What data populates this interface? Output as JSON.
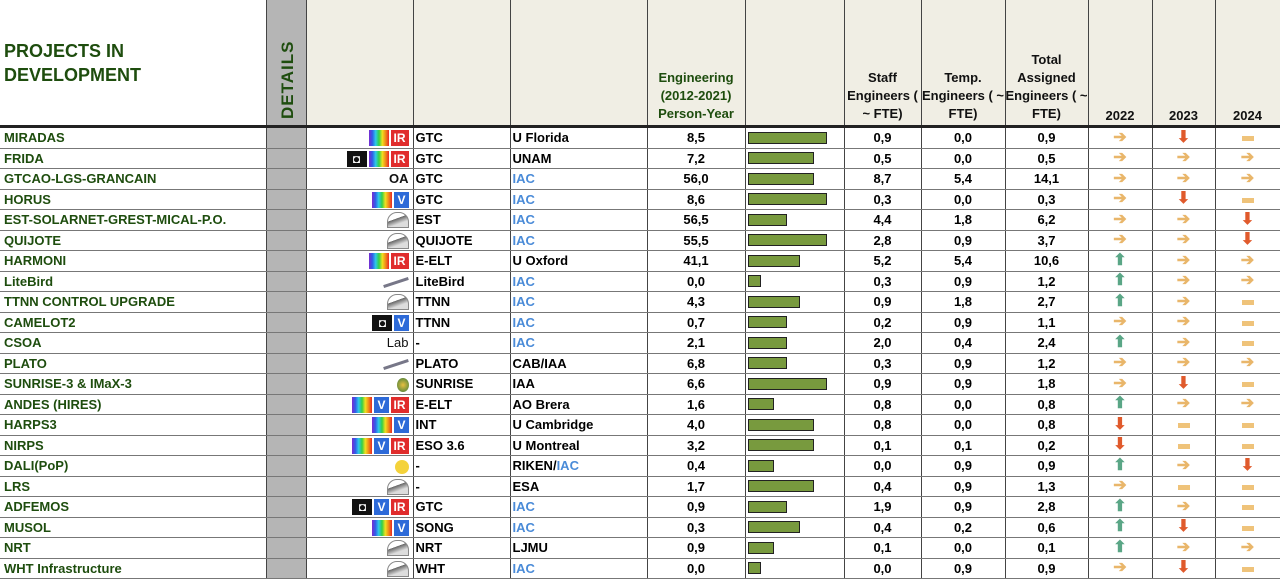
{
  "header": {
    "title": "PROJECTS IN DEVELOPMENT",
    "details": "DETAILS",
    "engineering": "Engineering (2012-2021) Person-Year",
    "staff": "Staff Engineers ( ~ FTE)",
    "temp": "Temp. Engineers ( ~ FTE)",
    "total": "Total Assigned Engineers ( ~ FTE)",
    "years": [
      "2022",
      "2023",
      "2024"
    ]
  },
  "colors": {
    "bar": "#789a3e",
    "title_green": "#1e4d0e",
    "iac_blue": "#4a8bd8",
    "arrow_right": "#e9b66a",
    "arrow_down": "#e05a2c",
    "arrow_up": "#5aa686"
  },
  "rows": [
    {
      "name": "MIRADAS",
      "icons": [
        "rainbow",
        "ir"
      ],
      "tel": "GTC",
      "inst": "U Florida",
      "py": "8,5",
      "staff": "0,9",
      "temp": "0,0",
      "total": "0,9",
      "bar": 0.9,
      "trend": [
        "right",
        "down",
        "flat"
      ]
    },
    {
      "name": "FRIDA",
      "icons": [
        "camera",
        "rainbow",
        "ir"
      ],
      "tel": "GTC",
      "inst": "UNAM",
      "py": "7,2",
      "staff": "0,5",
      "temp": "0,0",
      "total": "0,5",
      "bar": 0.75,
      "trend": [
        "right",
        "right",
        "right"
      ]
    },
    {
      "name": "GTCAO-LGS-GRANCAIN",
      "icons": [
        "oa"
      ],
      "tel": "GTC",
      "inst": "IAC",
      "py": "56,0",
      "staff": "8,7",
      "temp": "5,4",
      "total": "14,1",
      "bar": 0.75,
      "trend": [
        "right",
        "right",
        "right"
      ]
    },
    {
      "name": "HORUS",
      "icons": [
        "rainbow",
        "v"
      ],
      "tel": "GTC",
      "inst": "IAC",
      "py": "8,6",
      "staff": "0,3",
      "temp": "0,0",
      "total": "0,3",
      "bar": 0.9,
      "trend": [
        "right",
        "down",
        "flat"
      ]
    },
    {
      "name": "EST-SOLARNET-GREST-MICAL-P.O.",
      "icons": [
        "dome"
      ],
      "tel": "EST",
      "inst": "IAC",
      "py": "56,5",
      "staff": "4,4",
      "temp": "1,8",
      "total": "6,2",
      "bar": 0.45,
      "trend": [
        "right",
        "right",
        "down"
      ]
    },
    {
      "name": "QUIJOTE",
      "icons": [
        "dish"
      ],
      "tel": "QUIJOTE",
      "inst": "IAC",
      "py": "55,5",
      "staff": "2,8",
      "temp": "0,9",
      "total": "3,7",
      "bar": 0.9,
      "trend": [
        "right",
        "right",
        "down"
      ]
    },
    {
      "name": "HARMONI",
      "icons": [
        "rainbow",
        "ir"
      ],
      "tel": "E-ELT",
      "inst": "U Oxford",
      "py": "41,1",
      "staff": "5,2",
      "temp": "5,4",
      "total": "10,6",
      "bar": 0.6,
      "trend": [
        "up",
        "right",
        "right"
      ]
    },
    {
      "name": "LiteBird",
      "icons": [
        "satellite"
      ],
      "tel": "LiteBird",
      "inst": "IAC",
      "py": "0,0",
      "staff": "0,3",
      "temp": "0,9",
      "total": "1,2",
      "bar": 0.15,
      "trend": [
        "up",
        "right",
        "right"
      ]
    },
    {
      "name": "TTNN CONTROL UPGRADE",
      "icons": [
        "dome"
      ],
      "tel": "TTNN",
      "inst": "IAC",
      "py": "4,3",
      "staff": "0,9",
      "temp": "1,8",
      "total": "2,7",
      "bar": 0.6,
      "trend": [
        "up",
        "right",
        "flat"
      ]
    },
    {
      "name": "CAMELOT2",
      "icons": [
        "camera",
        "v"
      ],
      "tel": "TTNN",
      "inst": "IAC",
      "py": "0,7",
      "staff": "0,2",
      "temp": "0,9",
      "total": "1,1",
      "bar": 0.45,
      "trend": [
        "right",
        "right",
        "flat"
      ]
    },
    {
      "name": "CSOA",
      "icons": [
        "lab"
      ],
      "tel": "-",
      "inst": "IAC",
      "py": "2,1",
      "staff": "2,0",
      "temp": "0,4",
      "total": "2,4",
      "bar": 0.45,
      "trend": [
        "up",
        "right",
        "flat"
      ]
    },
    {
      "name": "PLATO",
      "icons": [
        "satellite"
      ],
      "tel": "PLATO",
      "inst": "CAB/IAA",
      "py": "6,8",
      "staff": "0,3",
      "temp": "0,9",
      "total": "1,2",
      "bar": 0.45,
      "trend": [
        "right",
        "right",
        "right"
      ]
    },
    {
      "name": "SUNRISE-3 & IMaX-3",
      "icons": [
        "balloon"
      ],
      "tel": "SUNRISE",
      "inst": "IAA",
      "py": "6,6",
      "staff": "0,9",
      "temp": "0,9",
      "total": "1,8",
      "bar": 0.9,
      "trend": [
        "right",
        "down",
        "flat"
      ]
    },
    {
      "name": "ANDES (HIRES)",
      "icons": [
        "rainbow",
        "v",
        "ir"
      ],
      "tel": "E-ELT",
      "inst": "AO Brera",
      "py": "1,6",
      "staff": "0,8",
      "temp": "0,0",
      "total": "0,8",
      "bar": 0.3,
      "trend": [
        "up",
        "right",
        "right"
      ]
    },
    {
      "name": "HARPS3",
      "icons": [
        "rainbow",
        "v"
      ],
      "tel": "INT",
      "inst": "U Cambridge",
      "py": "4,0",
      "staff": "0,8",
      "temp": "0,0",
      "total": "0,8",
      "bar": 0.75,
      "trend": [
        "down",
        "flat",
        "flat"
      ]
    },
    {
      "name": "NIRPS",
      "icons": [
        "rainbow",
        "v",
        "ir"
      ],
      "tel": "ESO 3.6",
      "inst": "U Montreal",
      "py": "3,2",
      "staff": "0,1",
      "temp": "0,1",
      "total": "0,2",
      "bar": 0.75,
      "trend": [
        "down",
        "flat",
        "flat"
      ]
    },
    {
      "name": "DALI(PoP)",
      "icons": [
        "bulb"
      ],
      "tel": "-",
      "inst": "RIKEN/",
      "inst2": "IAC",
      "py": "0,4",
      "staff": "0,0",
      "temp": "0,9",
      "total": "0,9",
      "bar": 0.3,
      "trend": [
        "up",
        "right",
        "down"
      ]
    },
    {
      "name": "LRS",
      "icons": [
        "dome"
      ],
      "tel": "-",
      "inst": "ESA",
      "py": "1,7",
      "staff": "0,4",
      "temp": "0,9",
      "total": "1,3",
      "bar": 0.75,
      "trend": [
        "right",
        "flat",
        "flat"
      ]
    },
    {
      "name": "ADFEMOS",
      "icons": [
        "camera",
        "v",
        "ir"
      ],
      "tel": "GTC",
      "inst": "IAC",
      "py": "0,9",
      "staff": "1,9",
      "temp": "0,9",
      "total": "2,8",
      "bar": 0.45,
      "trend": [
        "up",
        "right",
        "flat"
      ]
    },
    {
      "name": "MUSOL",
      "icons": [
        "rainbow",
        "v"
      ],
      "tel": "SONG",
      "inst": "IAC",
      "py": "0,3",
      "staff": "0,4",
      "temp": "0,2",
      "total": "0,6",
      "bar": 0.6,
      "trend": [
        "up",
        "down",
        "flat"
      ]
    },
    {
      "name": "NRT",
      "icons": [
        "dome"
      ],
      "tel": "NRT",
      "inst": "LJMU",
      "py": "0,9",
      "staff": "0,1",
      "temp": "0,0",
      "total": "0,1",
      "bar": 0.3,
      "trend": [
        "up",
        "right",
        "right"
      ]
    },
    {
      "name": "WHT Infrastructure",
      "icons": [
        "dome"
      ],
      "tel": "WHT",
      "inst": "IAC",
      "py": "0,0",
      "staff": "0,0",
      "temp": "0,9",
      "total": "0,9",
      "bar": 0.15,
      "trend": [
        "right",
        "down",
        "flat"
      ]
    }
  ]
}
